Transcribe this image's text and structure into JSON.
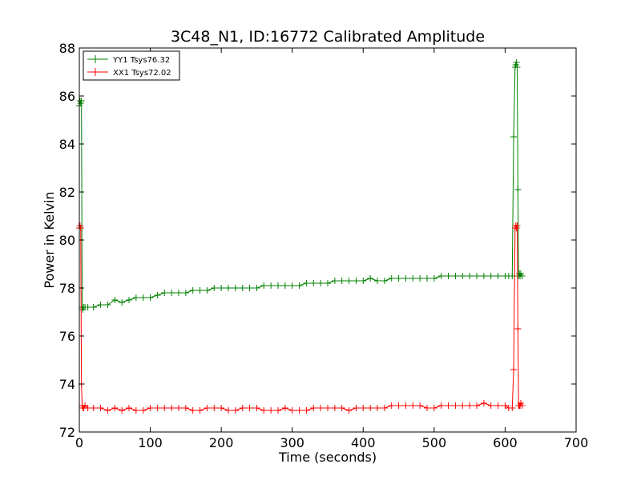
{
  "chart_data": {
    "type": "line",
    "title": "3C48_N1, ID:16772 Calibrated Amplitude",
    "xlabel": "Time (seconds)",
    "ylabel": "Power in Kelvin",
    "xlim": [
      0,
      700
    ],
    "ylim": [
      72,
      88
    ],
    "xticks": [
      0,
      100,
      200,
      300,
      400,
      500,
      600,
      700
    ],
    "yticks": [
      72,
      74,
      76,
      78,
      80,
      82,
      84,
      86,
      88
    ],
    "grid": false,
    "legend_position": "top-left",
    "marker": "+",
    "series": [
      {
        "name": "YY1 Tsys76.32",
        "color": "#008000",
        "x": [
          0,
          1,
          2,
          3,
          4,
          5,
          6,
          8,
          12,
          20,
          30,
          40,
          50,
          60,
          70,
          80,
          90,
          100,
          110,
          120,
          130,
          140,
          150,
          160,
          170,
          180,
          190,
          200,
          210,
          220,
          230,
          240,
          250,
          260,
          270,
          280,
          290,
          300,
          310,
          320,
          330,
          340,
          350,
          360,
          370,
          380,
          390,
          400,
          410,
          420,
          430,
          440,
          450,
          460,
          470,
          480,
          490,
          500,
          510,
          520,
          530,
          540,
          550,
          560,
          570,
          580,
          590,
          600,
          605,
          610,
          612,
          614,
          615,
          616,
          617,
          618,
          619,
          620,
          621,
          622,
          624
        ],
        "values": [
          85.6,
          85.8,
          85.7,
          85.8,
          77.2,
          77.1,
          77.2,
          77.2,
          77.2,
          77.2,
          77.3,
          77.3,
          77.5,
          77.4,
          77.5,
          77.6,
          77.6,
          77.6,
          77.7,
          77.8,
          77.8,
          77.8,
          77.8,
          77.9,
          77.9,
          77.9,
          78.0,
          78.0,
          78.0,
          78.0,
          78.0,
          78.0,
          78.0,
          78.1,
          78.1,
          78.1,
          78.1,
          78.1,
          78.1,
          78.2,
          78.2,
          78.2,
          78.2,
          78.3,
          78.3,
          78.3,
          78.3,
          78.3,
          78.4,
          78.3,
          78.3,
          78.4,
          78.4,
          78.4,
          78.4,
          78.4,
          78.4,
          78.4,
          78.5,
          78.5,
          78.5,
          78.5,
          78.5,
          78.5,
          78.5,
          78.5,
          78.5,
          78.5,
          78.5,
          78.5,
          84.3,
          87.2,
          87.3,
          87.4,
          87.2,
          82.1,
          78.5,
          78.6,
          78.5,
          78.6,
          78.5
        ]
      },
      {
        "name": "XX1 Tsys72.02",
        "color": "#ff0000",
        "x": [
          0,
          1,
          2,
          3,
          4,
          5,
          6,
          8,
          12,
          20,
          30,
          40,
          50,
          60,
          70,
          80,
          90,
          100,
          110,
          120,
          130,
          140,
          150,
          160,
          170,
          180,
          190,
          200,
          210,
          220,
          230,
          240,
          250,
          260,
          270,
          280,
          290,
          300,
          310,
          320,
          330,
          340,
          350,
          360,
          370,
          380,
          390,
          400,
          410,
          420,
          430,
          440,
          450,
          460,
          470,
          480,
          490,
          500,
          510,
          520,
          530,
          540,
          550,
          560,
          570,
          580,
          590,
          600,
          605,
          610,
          612,
          614,
          615,
          616,
          617,
          618,
          619,
          620,
          621,
          622,
          624
        ],
        "values": [
          80.5,
          80.6,
          80.5,
          74.0,
          73.1,
          73.0,
          73.0,
          73.1,
          73.0,
          73.0,
          73.0,
          72.9,
          73.0,
          72.9,
          73.0,
          72.9,
          72.9,
          73.0,
          73.0,
          73.0,
          73.0,
          73.0,
          73.0,
          72.9,
          72.9,
          73.0,
          73.0,
          73.0,
          72.9,
          72.9,
          73.0,
          73.0,
          73.0,
          72.9,
          72.9,
          72.9,
          73.0,
          72.9,
          72.9,
          72.9,
          73.0,
          73.0,
          73.0,
          73.0,
          73.0,
          72.9,
          73.0,
          73.0,
          73.0,
          73.0,
          73.0,
          73.1,
          73.1,
          73.1,
          73.1,
          73.1,
          73.0,
          73.0,
          73.1,
          73.1,
          73.1,
          73.1,
          73.1,
          73.1,
          73.2,
          73.1,
          73.1,
          73.1,
          73.0,
          73.0,
          74.6,
          80.5,
          80.6,
          80.5,
          80.6,
          76.3,
          73.1,
          73.1,
          73.1,
          73.2,
          73.1
        ]
      }
    ]
  }
}
